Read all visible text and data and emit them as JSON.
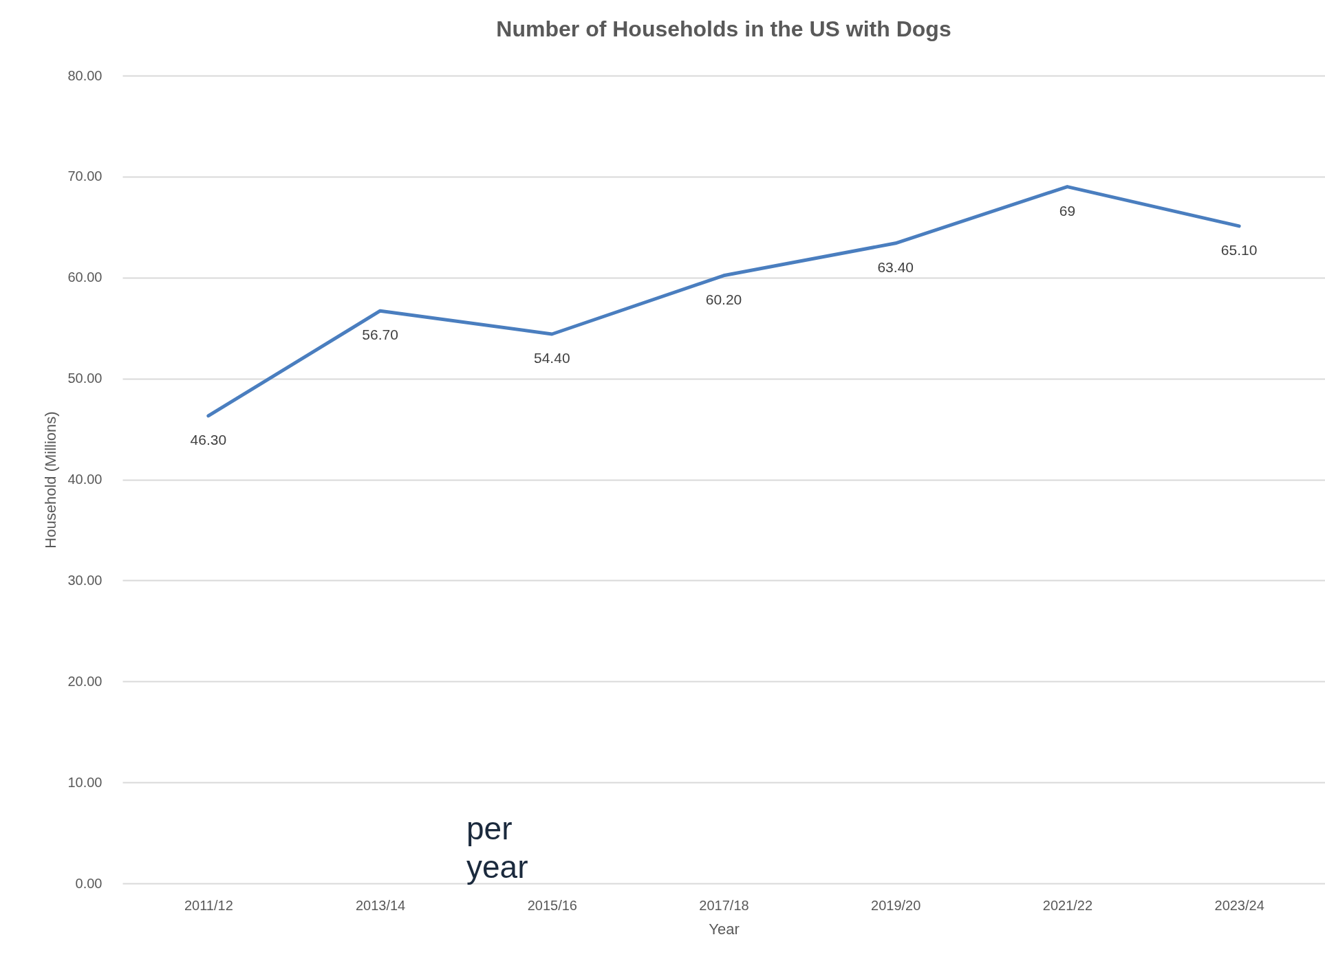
{
  "chart_data": {
    "type": "line",
    "title": "Number of Households in the US with Dogs",
    "xlabel": "Year",
    "ylabel": "Household (Millions)",
    "categories": [
      "2011/12",
      "2013/14",
      "2015/16",
      "2017/18",
      "2019/20",
      "2021/22",
      "2023/24"
    ],
    "series": [
      {
        "color": "#4a7ebf",
        "values": [
          46.3,
          56.7,
          54.4,
          60.2,
          63.4,
          69,
          65.1
        ],
        "value_labels": [
          "46.30",
          "56.70",
          "54.40",
          "60.20",
          "63.40",
          "69",
          "65.10"
        ]
      }
    ],
    "ylim": [
      0,
      80
    ],
    "yticks": [
      {
        "value": 0,
        "label": "0.00"
      },
      {
        "value": 10,
        "label": "10.00"
      },
      {
        "value": 20,
        "label": "20.00"
      },
      {
        "value": 30,
        "label": "30.00"
      },
      {
        "value": 40,
        "label": "40.00"
      },
      {
        "value": 50,
        "label": "50.00"
      },
      {
        "value": 60,
        "label": "60.00"
      },
      {
        "value": 70,
        "label": "70.00"
      },
      {
        "value": 80,
        "label": "80.00"
      }
    ],
    "grid": "y",
    "annotations": [
      "per year"
    ]
  }
}
